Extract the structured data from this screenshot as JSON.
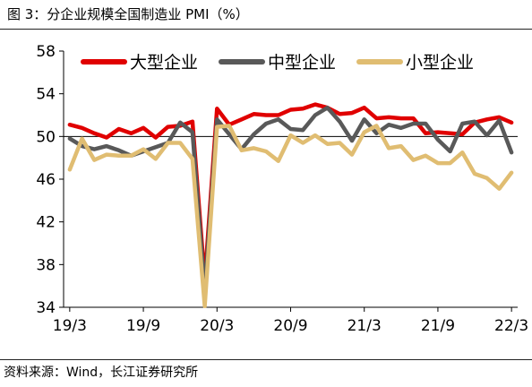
{
  "figure": {
    "title": "图 3：分企业规模全国制造业 PMI（%）",
    "source": "资料来源：Wind，长江证券研究所"
  },
  "chart_data": {
    "type": "line",
    "title": "",
    "xlabel": "",
    "ylabel": "",
    "ylim": [
      34,
      58
    ],
    "yticks": [
      34,
      38,
      42,
      46,
      50,
      54,
      58
    ],
    "baseline": 50,
    "x_tick_labels": [
      "19/3",
      "19/9",
      "20/3",
      "20/9",
      "21/3",
      "21/9",
      "22/3"
    ],
    "x": [
      "2019-03",
      "2019-04",
      "2019-05",
      "2019-06",
      "2019-07",
      "2019-08",
      "2019-09",
      "2019-10",
      "2019-11",
      "2019-12",
      "2020-01",
      "2020-02",
      "2020-03",
      "2020-04",
      "2020-05",
      "2020-06",
      "2020-07",
      "2020-08",
      "2020-09",
      "2020-10",
      "2020-11",
      "2020-12",
      "2021-01",
      "2021-02",
      "2021-03",
      "2021-04",
      "2021-05",
      "2021-06",
      "2021-07",
      "2021-08",
      "2021-09",
      "2021-10",
      "2021-11",
      "2021-12",
      "2022-01",
      "2022-02",
      "2022-03"
    ],
    "legend_position": "top",
    "series": [
      {
        "name": "大型企业",
        "color": "#e00000",
        "values": [
          51.1,
          50.8,
          50.3,
          49.9,
          50.7,
          50.3,
          50.8,
          49.9,
          50.9,
          51.0,
          51.4,
          36.5,
          52.6,
          51.1,
          51.6,
          52.1,
          52.0,
          52.0,
          52.5,
          52.6,
          53.0,
          52.7,
          52.1,
          52.2,
          52.7,
          51.7,
          51.8,
          51.7,
          51.7,
          50.3,
          50.4,
          50.3,
          50.2,
          51.3,
          51.6,
          51.8,
          51.3
        ]
      },
      {
        "name": "中型企业",
        "color": "#595959",
        "values": [
          49.8,
          49.1,
          48.8,
          49.1,
          48.7,
          48.2,
          48.6,
          49.0,
          49.4,
          51.3,
          50.4,
          35.5,
          51.6,
          50.2,
          48.8,
          50.2,
          51.2,
          51.6,
          50.7,
          50.6,
          52.0,
          52.7,
          51.4,
          49.6,
          51.6,
          50.3,
          51.1,
          50.8,
          51.2,
          51.2,
          49.7,
          48.6,
          51.2,
          51.4,
          50.1,
          51.5,
          48.5
        ]
      },
      {
        "name": "小型企业",
        "color": "#e0bd72",
        "values": [
          46.9,
          49.8,
          47.8,
          48.3,
          48.2,
          48.2,
          48.8,
          47.9,
          49.4,
          49.4,
          47.9,
          34.1,
          50.9,
          51.0,
          48.7,
          48.9,
          48.6,
          47.7,
          50.1,
          49.4,
          50.1,
          49.3,
          49.4,
          48.3,
          50.4,
          51.0,
          48.9,
          49.1,
          47.8,
          48.2,
          47.5,
          47.5,
          48.5,
          46.5,
          46.1,
          45.1,
          46.6
        ]
      }
    ]
  }
}
